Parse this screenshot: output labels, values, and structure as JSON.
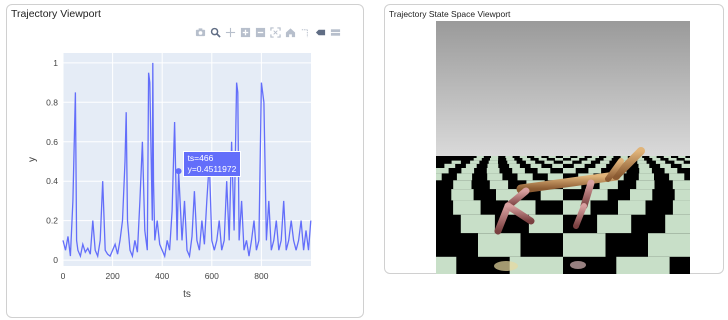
{
  "left_panel": {
    "title": "Trajectory Viewport",
    "modebar": [
      "camera-icon",
      "zoom-icon",
      "pan-icon",
      "zoom-in-icon",
      "zoom-out-icon",
      "autoscale-icon",
      "reset-axes-icon",
      "spike-lines-icon",
      "hover-closest-icon",
      "hover-compare-icon"
    ]
  },
  "right_panel": {
    "title": "Trajectory State Space Viewport"
  },
  "hover": {
    "line1": "ts=466",
    "line2": "y=0.4511972"
  },
  "colors": {
    "plot_bg": "#e5ecf6",
    "line": "#636efa",
    "grid": "#ffffff",
    "tick_text": "#444444"
  },
  "chart_data": {
    "type": "line",
    "xlabel": "ts",
    "ylabel": "y",
    "xlim": [
      0,
      1000
    ],
    "ylim": [
      -0.03,
      1.05
    ],
    "x_ticks": [
      0,
      200,
      400,
      600,
      800
    ],
    "y_ticks": [
      0,
      0.2,
      0.4,
      0.6,
      0.8,
      1
    ],
    "x_tick_labels": [
      "0",
      "200",
      "400",
      "600",
      "800"
    ],
    "y_tick_labels": [
      "0",
      "0.2",
      "0.4",
      "0.6",
      "0.8",
      "1"
    ],
    "series": [
      {
        "x": [
          0,
          10,
          20,
          30,
          40,
          50,
          55,
          60,
          70,
          80,
          90,
          100,
          110,
          120,
          130,
          140,
          150,
          160,
          170,
          180,
          190,
          200,
          210,
          220,
          230,
          240,
          250,
          255,
          260,
          270,
          280,
          290,
          300,
          310,
          320,
          330,
          340,
          345,
          350,
          360,
          362,
          365,
          370,
          380,
          390,
          400,
          410,
          420,
          430,
          440,
          450,
          460,
          466,
          470,
          480,
          490,
          500,
          510,
          520,
          530,
          540,
          550,
          560,
          570,
          580,
          590,
          600,
          610,
          620,
          630,
          640,
          650,
          660,
          670,
          680,
          690,
          700,
          705,
          710,
          720,
          730,
          740,
          750,
          760,
          770,
          780,
          790,
          800,
          810,
          820,
          830,
          840,
          850,
          860,
          870,
          880,
          890,
          900,
          910,
          920,
          930,
          940,
          950,
          960,
          970,
          980,
          990,
          999
        ],
        "y": [
          0.1,
          0.05,
          0.12,
          0.02,
          0.3,
          0.85,
          0.1,
          0.05,
          0.02,
          0.08,
          0.04,
          0.06,
          0.03,
          0.2,
          0.05,
          0.02,
          0.1,
          0.4,
          0.05,
          0.03,
          0.02,
          0.05,
          0.08,
          0.03,
          0.1,
          0.2,
          0.5,
          0.75,
          0.2,
          0.05,
          0.02,
          0.1,
          0.04,
          0.3,
          0.6,
          0.15,
          0.05,
          0.95,
          0.9,
          0.2,
          1.0,
          0.4,
          0.1,
          0.2,
          0.08,
          0.05,
          0.02,
          0.1,
          0.05,
          0.25,
          0.7,
          0.1,
          0.4511972,
          0.35,
          0.1,
          0.3,
          0.05,
          0.02,
          0.12,
          0.35,
          0.1,
          0.05,
          0.2,
          0.08,
          0.3,
          0.5,
          0.1,
          0.05,
          0.1,
          0.2,
          0.05,
          0.1,
          0.4,
          0.1,
          0.6,
          0.15,
          0.9,
          0.85,
          0.1,
          0.3,
          0.05,
          0.1,
          0.02,
          0.1,
          0.2,
          0.05,
          0.1,
          0.9,
          0.8,
          0.1,
          0.3,
          0.05,
          0.1,
          0.2,
          0.05,
          0.1,
          0.3,
          0.05,
          0.1,
          0.2,
          0.1,
          0.05,
          0.1,
          0.2,
          0.05,
          0.15,
          0.05,
          0.2
        ]
      }
    ]
  }
}
